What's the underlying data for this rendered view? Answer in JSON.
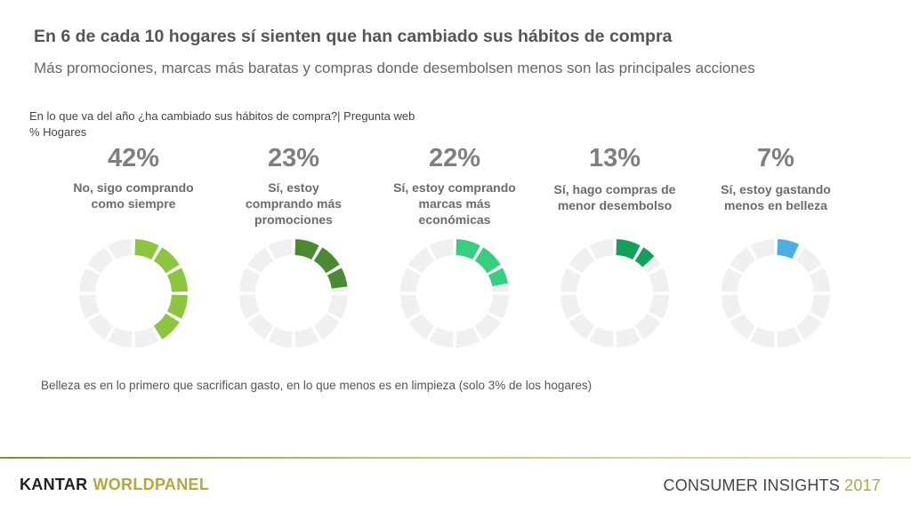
{
  "header": {
    "title": "En 6 de  cada 10 hogares sí sienten que han cambiado sus hábitos de compra",
    "subtitle": "Más promociones, marcas más baratas y compras donde desembolsen menos  son las principales acciones"
  },
  "question": {
    "line1": "En lo que va del año ¿ha cambiado sus hábitos de compra?|  Pregunta web",
    "line2": "% Hogares"
  },
  "chart_data": {
    "type": "pie",
    "unit": "%",
    "series": [
      {
        "value": 42,
        "value_label": "42%",
        "label": "No, sigo comprando como siempre",
        "color": "#8cc63f"
      },
      {
        "value": 23,
        "value_label": "23%",
        "label": "Sí, estoy comprando más promociones",
        "color": "#4b8a32"
      },
      {
        "value": 22,
        "value_label": "22%",
        "label": "Sí, estoy comprando marcas más económicas",
        "color": "#34d07e"
      },
      {
        "value": 13,
        "value_label": "13%",
        "label": "Sí, hago compras de menor desembolso",
        "color": "#12a05c"
      },
      {
        "value": 7,
        "value_label": "7%",
        "label": "Sí, estoy gastando menos en belleza",
        "color": "#4aaee0"
      }
    ],
    "track_color": "#f0f0f0"
  },
  "note": "Belleza es en lo primero que sacrifican gasto, en lo que menos es en limpieza (solo 3% de los hogares)",
  "footer": {
    "brand_part1": "KANTAR",
    "brand_part2": "WORLDPANEL",
    "right_text": "CONSUMER INSIGHTS",
    "right_year": "2017"
  }
}
